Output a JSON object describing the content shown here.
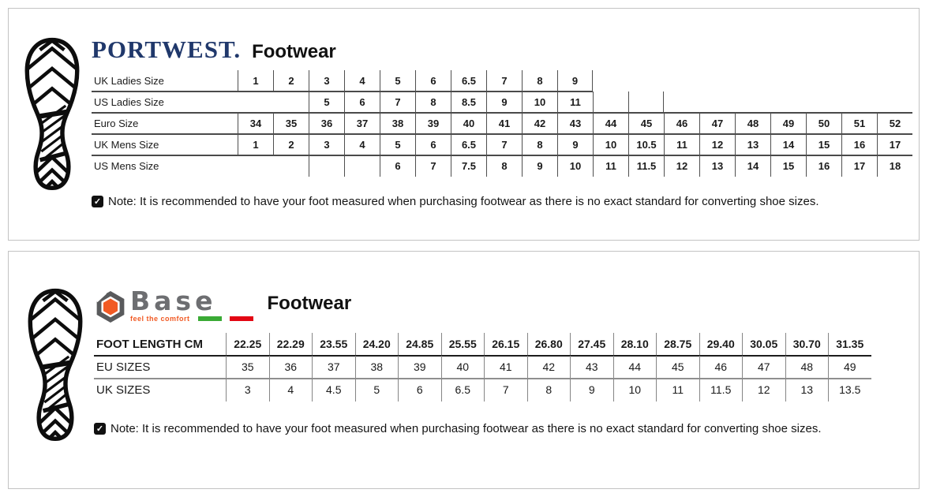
{
  "panels": [
    {
      "name": "portwest",
      "brand": {
        "name": "PORTWEST.",
        "suffix": "Footwear"
      },
      "table": {
        "rows": [
          {
            "label": "UK Ladies Size",
            "values": [
              "1",
              "2",
              "3",
              "4",
              "5",
              "6",
              "6.5",
              "7",
              "8",
              "9"
            ]
          },
          {
            "label": "US Ladies Size",
            "values": [
              "",
              "",
              "5",
              "6",
              "7",
              "8",
              "8.5",
              "9",
              "10",
              "11",
              "",
              ""
            ]
          },
          {
            "label": "Euro Size",
            "values": [
              "34",
              "35",
              "36",
              "37",
              "38",
              "39",
              "40",
              "41",
              "42",
              "43",
              "44",
              "45",
              "46",
              "47",
              "48",
              "49",
              "50",
              "51",
              "52"
            ]
          },
          {
            "label": "UK Mens Size",
            "values": [
              "1",
              "2",
              "3",
              "4",
              "5",
              "6",
              "6.5",
              "7",
              "8",
              "9",
              "10",
              "10.5",
              "11",
              "12",
              "13",
              "14",
              "15",
              "16",
              "17"
            ]
          },
          {
            "label": "US Mens Size",
            "values": [
              "",
              "",
              "",
              "",
              "6",
              "7",
              "7.5",
              "8",
              "9",
              "10",
              "11",
              "11.5",
              "12",
              "13",
              "14",
              "15",
              "16",
              "17",
              "18"
            ]
          }
        ]
      },
      "note": "Note: It is recommended to have your foot measured when purchasing footwear as there is no exact standard for converting shoe sizes."
    },
    {
      "name": "base",
      "brand": {
        "name": "Base",
        "tagline": "feel the comfort",
        "suffix": "Footwear"
      },
      "table": {
        "rows": [
          {
            "label": "FOOT LENGTH CM",
            "values": [
              "22.25",
              "22.29",
              "23.55",
              "24.20",
              "24.85",
              "25.55",
              "26.15",
              "26.80",
              "27.45",
              "28.10",
              "28.75",
              "29.40",
              "30.05",
              "30.70",
              "31.35"
            ]
          },
          {
            "label": "EU SIZES",
            "values": [
              "35",
              "36",
              "37",
              "38",
              "39",
              "40",
              "41",
              "42",
              "43",
              "44",
              "45",
              "46",
              "47",
              "48",
              "49"
            ]
          },
          {
            "label": "UK SIZES",
            "values": [
              "3",
              "4",
              "4.5",
              "5",
              "6",
              "6.5",
              "7",
              "8",
              "9",
              "10",
              "11",
              "11.5",
              "12",
              "13",
              "13.5"
            ]
          }
        ]
      },
      "note": "Note: It is recommended to have your foot measured when purchasing footwear as there is no exact standard for converting shoe sizes."
    }
  ],
  "colors": {
    "portwest_navy": "#20386b",
    "base_gray": "#6d6e71",
    "base_orange": "#f15a24",
    "flag_green": "#3aaa35",
    "flag_red": "#e30613"
  },
  "icons": [
    "boot-print-icon",
    "check-note-icon",
    "hex-nut-icon"
  ]
}
